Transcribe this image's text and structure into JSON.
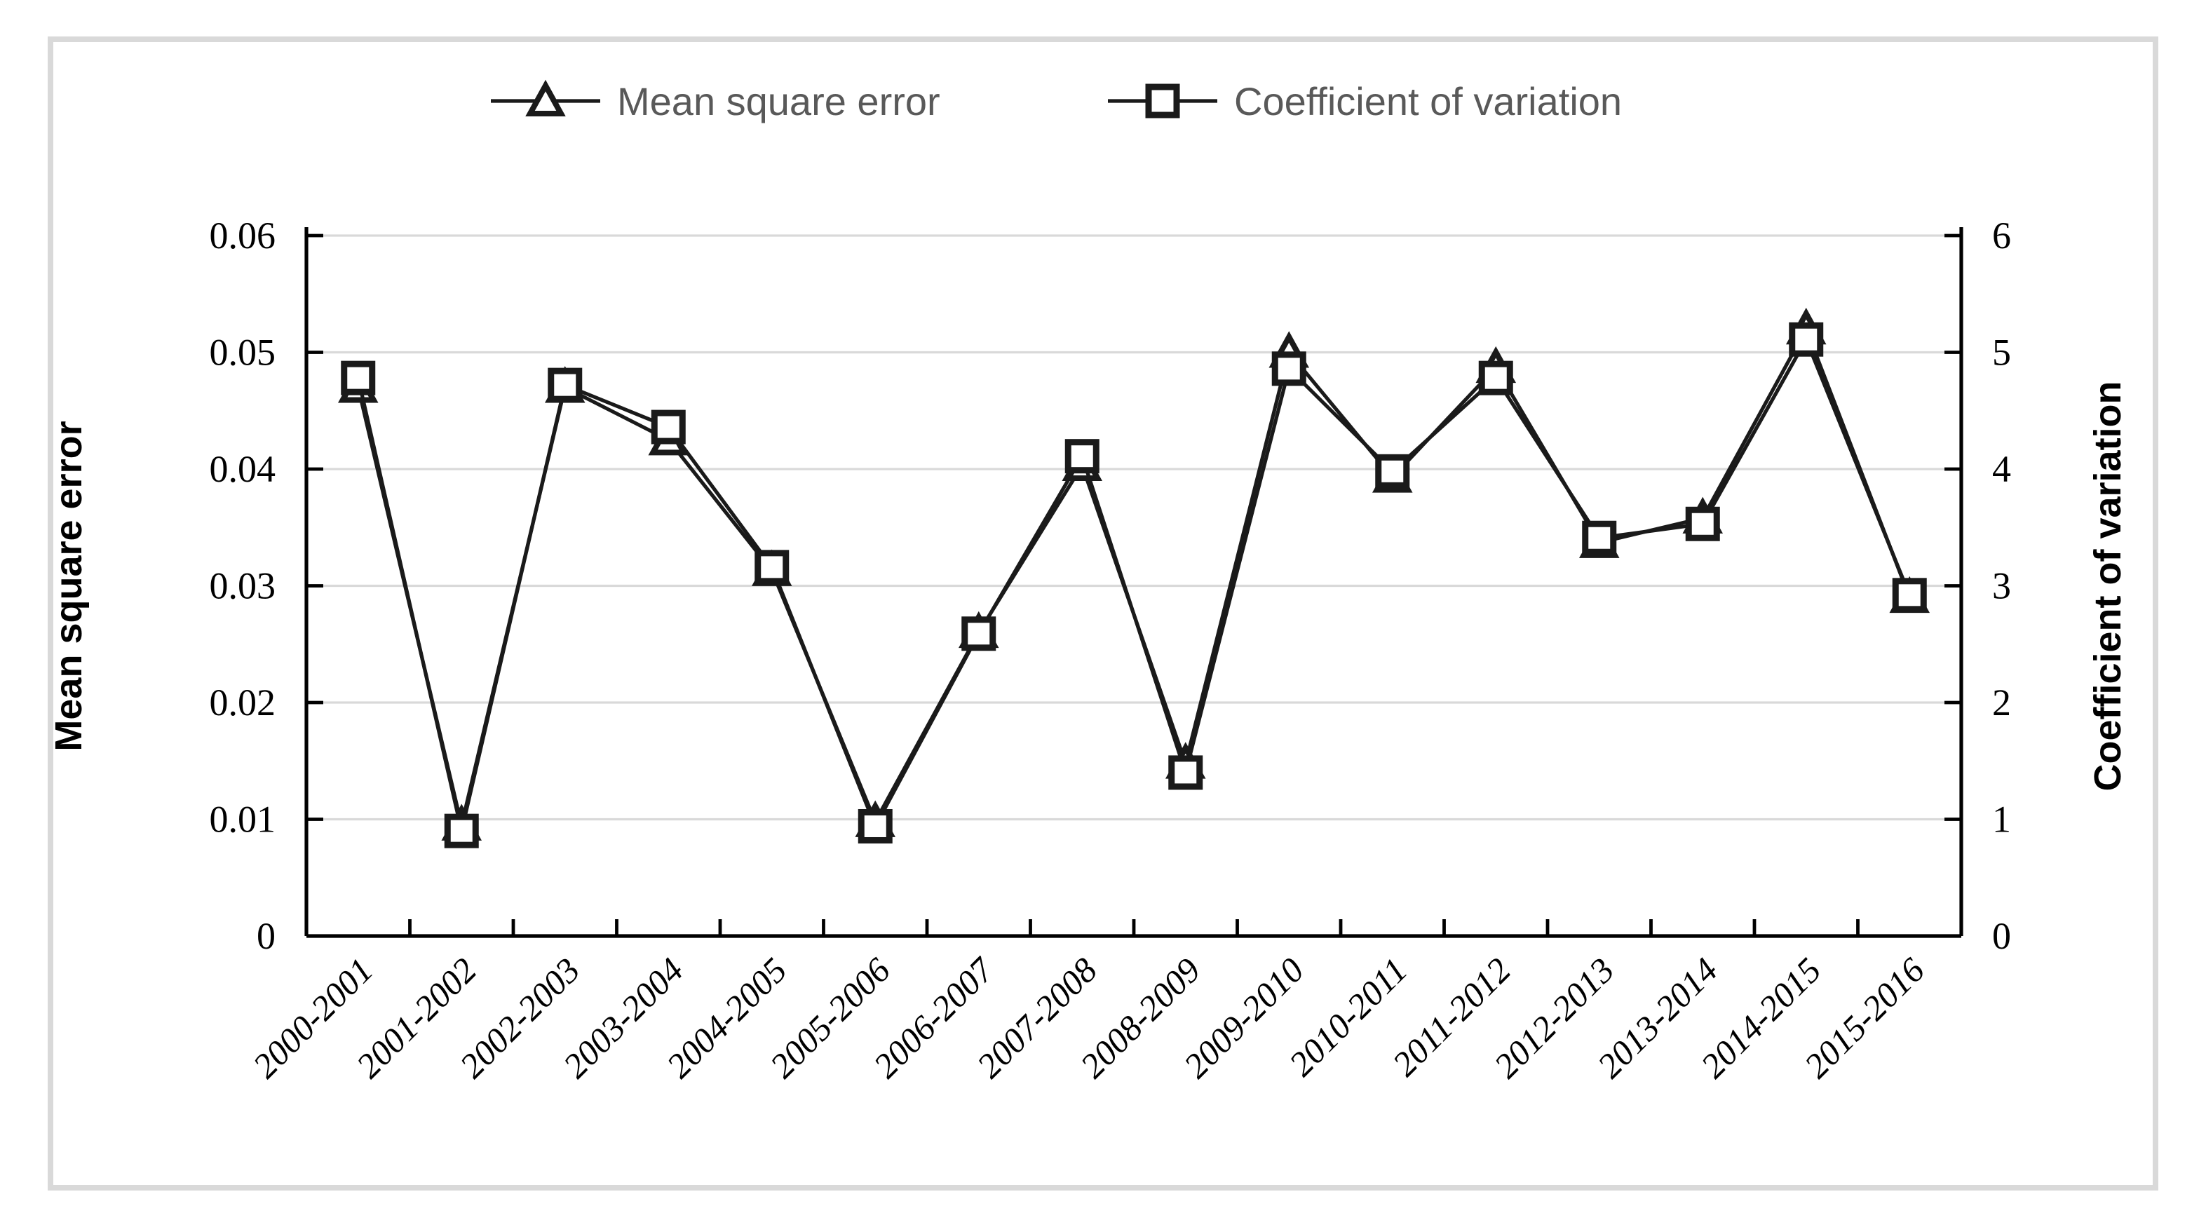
{
  "frame": {
    "border_color": "#d9d9d9"
  },
  "legend": {
    "items": [
      {
        "label": "Mean square error",
        "marker": "triangle"
      },
      {
        "label": "Coefficient of variation",
        "marker": "square"
      }
    ]
  },
  "chart_data": {
    "type": "line",
    "categories": [
      "2000-2001",
      "2001-2002",
      "2002-2003",
      "2003-2004",
      "2004-2005",
      "2005-2006",
      "2006-2007",
      "2007-2008",
      "2008-2009",
      "2009-2010",
      "2010-2011",
      "2011-2012",
      "2012-2013",
      "2013-2014",
      "2014-2015",
      "2015-2016"
    ],
    "series": [
      {
        "name": "Mean square error",
        "axis": "left",
        "marker": "triangle",
        "values": [
          0.047,
          0.0095,
          0.047,
          0.0425,
          0.0313,
          0.0098,
          0.026,
          0.0403,
          0.0148,
          0.05,
          0.0393,
          0.0487,
          0.0337,
          0.0358,
          0.052,
          0.029
        ]
      },
      {
        "name": "Coefficient of variation",
        "axis": "right",
        "marker": "square",
        "values": [
          4.78,
          0.9,
          4.72,
          4.36,
          3.16,
          0.94,
          2.59,
          4.11,
          1.4,
          4.86,
          3.98,
          4.78,
          3.41,
          3.53,
          5.11,
          2.92
        ]
      }
    ],
    "left_axis": {
      "title": "Mean square error",
      "min": 0,
      "max": 0.06,
      "tick_step": 0.01,
      "ticks": [
        "0",
        "0.01",
        "0.02",
        "0.03",
        "0.04",
        "0.05",
        "0.06"
      ]
    },
    "right_axis": {
      "title": "Coefficient of variation",
      "min": 0,
      "max": 6,
      "tick_step": 1,
      "ticks": [
        "0",
        "1",
        "2",
        "3",
        "4",
        "5",
        "6"
      ]
    },
    "grid": true,
    "legend_position": "top"
  },
  "colors": {
    "line": "#1a1a1a",
    "grid": "#d9d9d9",
    "frame": "#d9d9d9",
    "axis": "#000000",
    "legend_text": "#595959",
    "marker_fill": "#ffffff"
  }
}
